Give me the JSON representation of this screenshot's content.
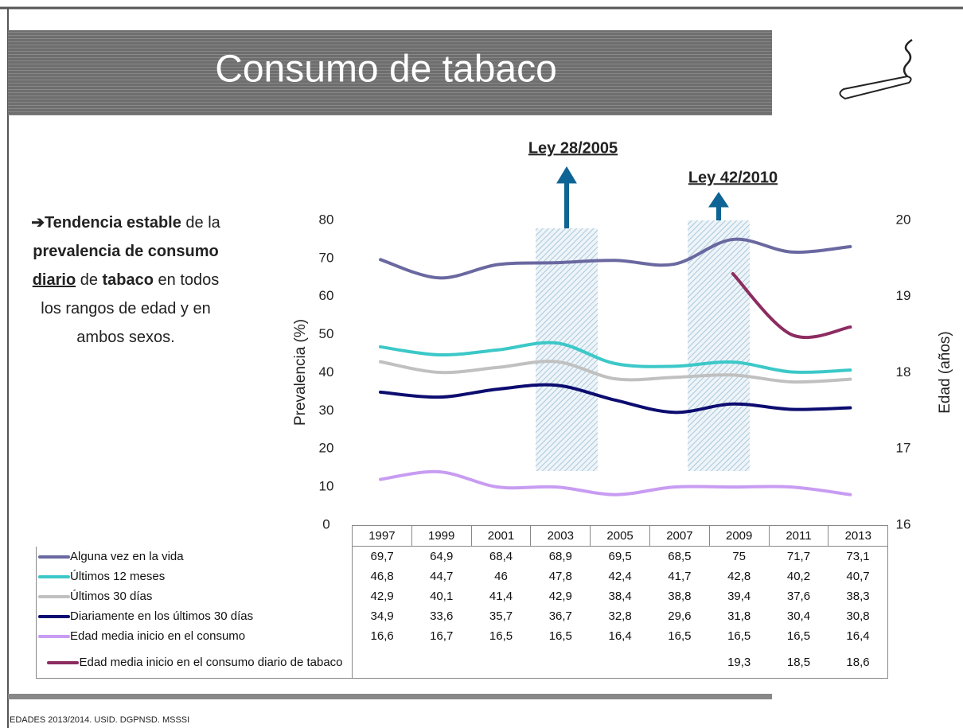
{
  "title": "Consumo de tabaco",
  "side_text": [
    {
      "text": "➔Tendencia ",
      "bold": true,
      "underline": false
    },
    {
      "text": "estable",
      "bold": true,
      "underline": false
    },
    {
      "text": " de la ",
      "bold": false,
      "underline": false
    },
    {
      "text": "prevalencia de consumo ",
      "bold": true,
      "underline": false
    },
    {
      "text": "diario",
      "bold": true,
      "underline": true
    },
    {
      "text": " de ",
      "bold": false,
      "underline": false
    },
    {
      "text": "tabaco",
      "bold": true,
      "underline": false
    },
    {
      "text": " en todos los rangos de edad y en ambos sexos.",
      "bold": false,
      "underline": false
    }
  ],
  "source": "EDADES 2013/2014. USID. DGPNSD. MSSSI",
  "chart_data": {
    "type": "line",
    "y_label": "Prevalencia (%)",
    "y2_label": "Edad (años)",
    "annotations": [
      "Ley 28/2005",
      "Ley 42/2010"
    ],
    "categories": [
      "1997",
      "1999",
      "2001",
      "2003",
      "2005",
      "2007",
      "2009",
      "2011",
      "2013"
    ],
    "ylim": [
      0,
      80
    ],
    "yticks": [
      0,
      10,
      20,
      30,
      40,
      50,
      60,
      70,
      80
    ],
    "y2lim": [
      16,
      20
    ],
    "y2ticks": [
      16,
      17,
      18,
      19,
      20
    ],
    "series": [
      {
        "name": "Alguna vez en la vida",
        "color": "#6a68a0",
        "values": [
          69.7,
          64.9,
          68.4,
          68.9,
          69.5,
          68.5,
          75,
          71.7,
          73.1
        ],
        "value_labels": [
          "69,7",
          "64,9",
          "68,4",
          "68,9",
          "69,5",
          "68,5",
          "75",
          "71,7",
          "73,1"
        ]
      },
      {
        "name": "Últimos 12 meses",
        "color": "#3cc8c8",
        "values": [
          46.8,
          44.7,
          46,
          47.8,
          42.4,
          41.7,
          42.8,
          40.2,
          40.7
        ],
        "value_labels": [
          "46,8",
          "44,7",
          "46",
          "47,8",
          "42,4",
          "41,7",
          "42,8",
          "40,2",
          "40,7"
        ]
      },
      {
        "name": "Últimos 30 días",
        "color": "#c0c0c0",
        "values": [
          42.9,
          40.1,
          41.4,
          42.9,
          38.4,
          38.8,
          39.4,
          37.6,
          38.3
        ],
        "value_labels": [
          "42,9",
          "40,1",
          "41,4",
          "42,9",
          "38,4",
          "38,8",
          "39,4",
          "37,6",
          "38,3"
        ]
      },
      {
        "name": "Diariamente en los últimos 30 días",
        "color": "#0c0c70",
        "values": [
          34.9,
          33.6,
          35.7,
          36.7,
          32.8,
          29.6,
          31.8,
          30.4,
          30.8
        ],
        "value_labels": [
          "34,9",
          "33,6",
          "35,7",
          "36,7",
          "32,8",
          "29,6",
          "31,8",
          "30,4",
          "30,8"
        ]
      },
      {
        "name": "Edad media inicio en el consumo",
        "color": "#c89cf2",
        "axis": "y2",
        "values": [
          16.6,
          16.7,
          16.5,
          16.5,
          16.4,
          16.5,
          16.5,
          16.5,
          16.4
        ],
        "value_labels": [
          "16,6",
          "16,7",
          "16,5",
          "16,5",
          "16,4",
          "16,5",
          "16,5",
          "16,5",
          "16,4"
        ]
      },
      {
        "name": "Edad media inicio en el consumo diario de tabaco",
        "color": "#8c2c60",
        "axis": "y2",
        "values": [
          null,
          null,
          null,
          null,
          null,
          null,
          19.3,
          18.5,
          18.6
        ],
        "value_labels": [
          null,
          null,
          null,
          null,
          null,
          null,
          "19,3",
          "18,5",
          "18,6"
        ]
      }
    ]
  }
}
